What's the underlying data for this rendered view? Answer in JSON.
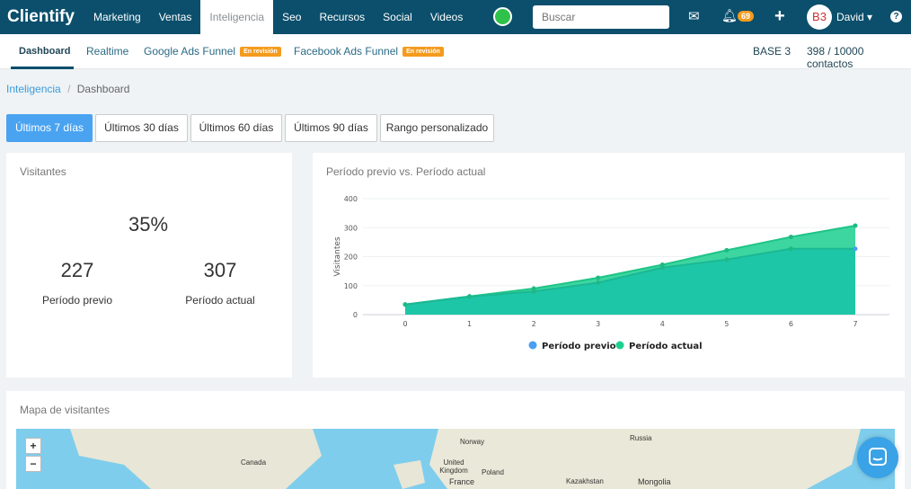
{
  "topnav": {
    "logo": "Clientify",
    "items": [
      "Marketing",
      "Ventas",
      "Inteligencia",
      "Seo",
      "Recursos",
      "Social",
      "Videos"
    ],
    "active": "Inteligencia",
    "search_placeholder": "Buscar",
    "notifications": "69",
    "avatar": "B3",
    "user": "David",
    "help": "?"
  },
  "subnav": {
    "items": [
      "Dashboard",
      "Realtime",
      "Google Ads Funnel",
      "Facebook Ads Funnel"
    ],
    "badge": "En revisión",
    "base": "BASE 3",
    "contacts": "398 / 10000 contactos"
  },
  "breadcrumb": {
    "parent": "Inteligencia",
    "sep": "/",
    "current": "Dashboard"
  },
  "ranges": [
    "Últimos 7 días",
    "Últimos 30 días",
    "Últimos 60 días",
    "Últimos 90 días",
    "Rango personalizado"
  ],
  "visitors": {
    "title": "Visitantes",
    "percent": "35%",
    "prev_value": "227",
    "prev_label": "Período previo",
    "curr_value": "307",
    "curr_label": "Período actual"
  },
  "chart_data": {
    "type": "area",
    "title": "Período previo vs. Período actual",
    "ylabel": "Visitantes",
    "xlabel": "",
    "x": [
      0,
      1,
      2,
      3,
      4,
      5,
      6,
      7
    ],
    "ylim": [
      0,
      400
    ],
    "yticks": [
      0,
      100,
      200,
      300,
      400
    ],
    "grid": true,
    "legend": "bottom",
    "series": [
      {
        "name": "Período previo",
        "color": "#4a9ff5",
        "values": [
          35,
          62,
          80,
          110,
          162,
          190,
          227,
          227
        ]
      },
      {
        "name": "Período actual",
        "color": "#1fcf8f",
        "values": [
          35,
          63,
          90,
          127,
          172,
          222,
          268,
          307
        ]
      }
    ]
  },
  "map": {
    "title": "Mapa de visitantes",
    "zoom_in": "+",
    "zoom_out": "−",
    "labels": [
      "Canada",
      "Norway",
      "Russia",
      "United Kingdom",
      "Poland",
      "France",
      "Kazakhstan",
      "Mongolia"
    ]
  }
}
